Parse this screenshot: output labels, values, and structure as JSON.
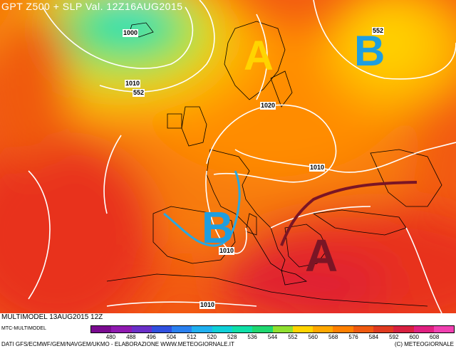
{
  "map": {
    "title": "GPT Z500 + SLP Val. 12Z16AUG2015",
    "pressure_labels": {
      "high_north": "A",
      "low_northeast": "B",
      "low_iberia": "B",
      "high_south": "A"
    },
    "isobar_labels": [
      "1000",
      "1010",
      "552",
      "552",
      "1020",
      "1010",
      "1010",
      "1010"
    ],
    "colors": {
      "high_north": "#ffd400",
      "low": "#1e9ee0",
      "high_south": "#7a1525",
      "front": "#7a1525",
      "trough": "#29a8e0",
      "isobar": "#ffffff",
      "coastline": "#000000"
    }
  },
  "footer": {
    "model_line": "MULTIMODEL 13AUG2015 12Z",
    "mtc_line": "MTC-MULTIMODEL",
    "credits": "DATI GFS/ECMWF/GEM/NAVGEM/UKMO - ELABORAZIONE WWW.METEOGIORNALE.IT",
    "copyright": "(C) METEOGIORNALE"
  },
  "legend": {
    "ticks": [
      "480",
      "488",
      "496",
      "504",
      "512",
      "520",
      "528",
      "536",
      "544",
      "552",
      "560",
      "568",
      "576",
      "584",
      "592",
      "600",
      "608"
    ],
    "colors": [
      "#7a0a90",
      "#8f1ab0",
      "#6a2fc8",
      "#3050e0",
      "#2a80f0",
      "#20b0f0",
      "#10d0d8",
      "#10e0a8",
      "#20d870",
      "#90e030",
      "#ffd400",
      "#ffa800",
      "#ff8000",
      "#f05a10",
      "#e03a20",
      "#d82040",
      "#e02080",
      "#f040b0"
    ]
  }
}
